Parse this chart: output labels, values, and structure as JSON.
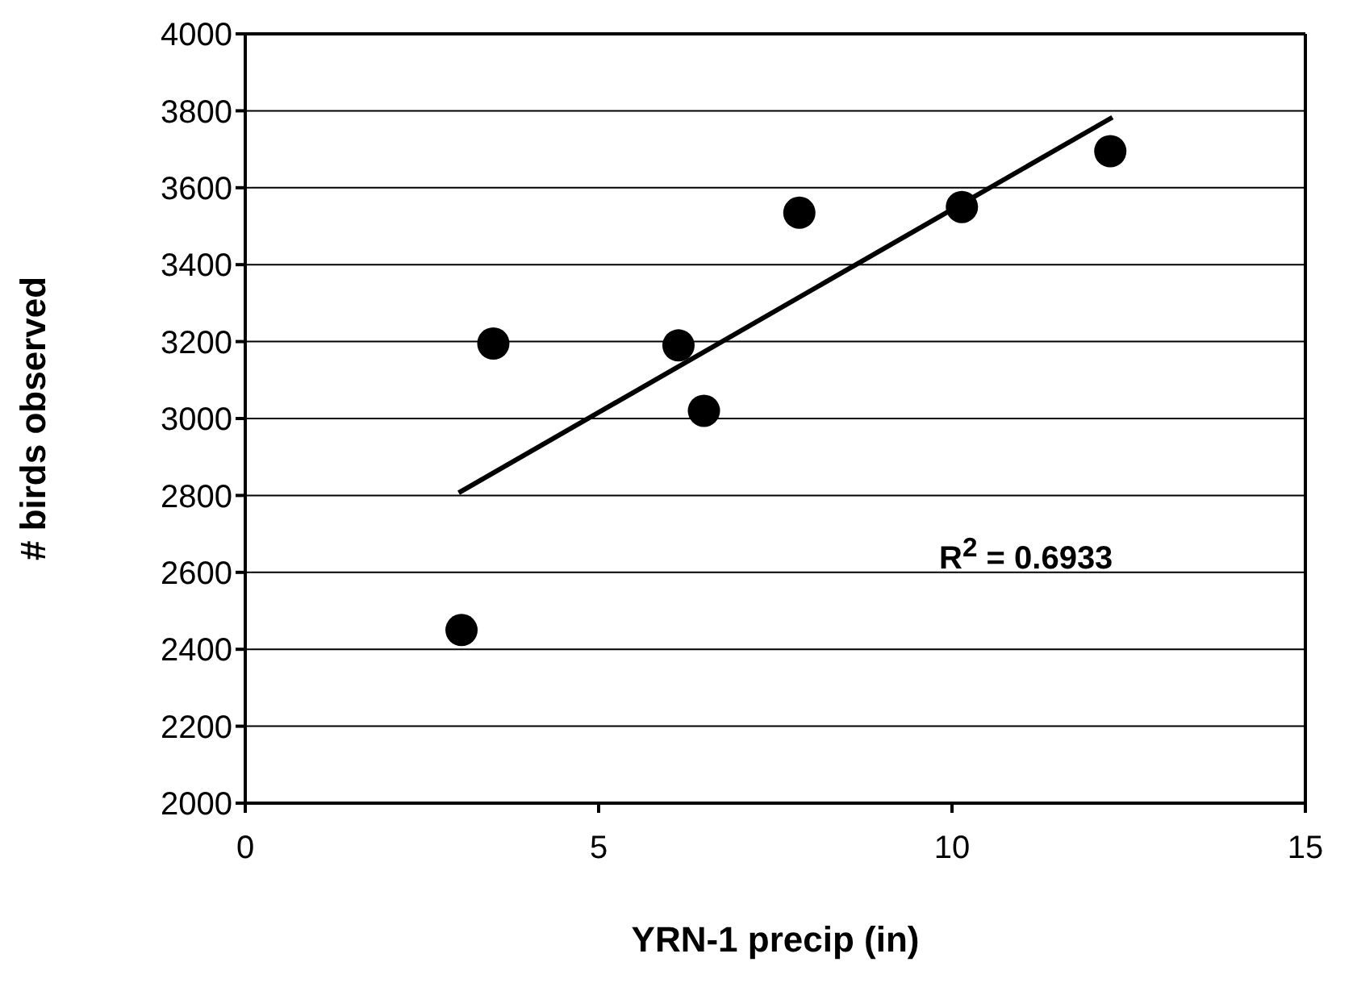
{
  "chart_data": {
    "type": "scatter",
    "xlabel": "YRN-1 precip (in)",
    "ylabel": "# birds observed",
    "series": [
      {
        "color": "#000000",
        "x": [
          3.06,
          3.51,
          6.13,
          6.49,
          7.84,
          10.14,
          12.24
        ],
        "values": [
          2450,
          3195,
          3190,
          3020,
          3535,
          3550,
          3695
        ]
      },
      {
        "type": "line",
        "marker": "none",
        "color": "#000000",
        "x": [
          3.02,
          12.27
        ],
        "values": [
          2807,
          3783
        ]
      }
    ],
    "annotations": [
      "R$^{2}$ = 0.6933"
    ],
    "xlim": [
      0,
      15
    ],
    "xticks": [
      0,
      5,
      10,
      15
    ],
    "ylim": [
      2000,
      4000
    ],
    "yticks": [
      2000,
      2200,
      2400,
      2600,
      2800,
      3000,
      3200,
      3400,
      3600,
      3800,
      4000
    ],
    "grid": "y",
    "marker": "circle",
    "line_style": "solid"
  }
}
